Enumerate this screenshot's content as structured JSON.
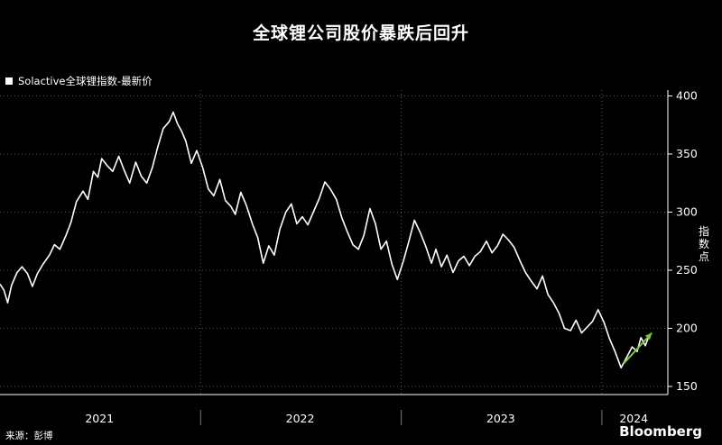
{
  "title": "全球锂公司股价暴跌后回升",
  "legend": {
    "label": "Solactive全球锂指数-最新价"
  },
  "source": "来源：彭博",
  "brand": "Bloomberg",
  "colors": {
    "background": "#000000",
    "line": "#ffffff",
    "grid": "#555555",
    "arrow": "#7ec93a"
  },
  "chart_data": {
    "type": "line",
    "title": "全球锂公司股价暴跌后回升",
    "ylabel": "指数点",
    "ylim": [
      143,
      405
    ],
    "y_ticks": [
      150,
      200,
      250,
      300,
      350,
      400
    ],
    "x_range": [
      "2021-01-01",
      "2024-04-30"
    ],
    "x_labels": [
      "2021",
      "2022",
      "2023",
      "2024"
    ],
    "x_label_dates": [
      "2021-07-01",
      "2022-07-01",
      "2023-07-01",
      "2024-02-28"
    ],
    "series": [
      {
        "name": "Solactive全球锂指数-最新价",
        "points": [
          [
            "2021-01-01",
            238
          ],
          [
            "2021-01-08",
            233
          ],
          [
            "2021-01-15",
            222
          ],
          [
            "2021-01-22",
            237
          ],
          [
            "2021-02-01",
            248
          ],
          [
            "2021-02-10",
            253
          ],
          [
            "2021-02-20",
            247
          ],
          [
            "2021-03-01",
            236
          ],
          [
            "2021-03-10",
            247
          ],
          [
            "2021-03-20",
            255
          ],
          [
            "2021-04-01",
            263
          ],
          [
            "2021-04-10",
            272
          ],
          [
            "2021-04-20",
            268
          ],
          [
            "2021-05-01",
            280
          ],
          [
            "2021-05-10",
            291
          ],
          [
            "2021-05-20",
            309
          ],
          [
            "2021-06-01",
            318
          ],
          [
            "2021-06-10",
            311
          ],
          [
            "2021-06-20",
            335
          ],
          [
            "2021-06-28",
            330
          ],
          [
            "2021-07-05",
            346
          ],
          [
            "2021-07-15",
            340
          ],
          [
            "2021-07-25",
            335
          ],
          [
            "2021-08-05",
            348
          ],
          [
            "2021-08-15",
            336
          ],
          [
            "2021-08-25",
            325
          ],
          [
            "2021-09-05",
            343
          ],
          [
            "2021-09-15",
            331
          ],
          [
            "2021-09-25",
            325
          ],
          [
            "2021-10-05",
            338
          ],
          [
            "2021-10-15",
            356
          ],
          [
            "2021-10-25",
            372
          ],
          [
            "2021-11-05",
            378
          ],
          [
            "2021-11-12",
            386
          ],
          [
            "2021-11-20",
            376
          ],
          [
            "2021-11-28",
            369
          ],
          [
            "2021-12-05",
            361
          ],
          [
            "2021-12-15",
            342
          ],
          [
            "2021-12-25",
            353
          ],
          [
            "2022-01-05",
            338
          ],
          [
            "2022-01-15",
            320
          ],
          [
            "2022-01-25",
            314
          ],
          [
            "2022-02-05",
            328
          ],
          [
            "2022-02-15",
            310
          ],
          [
            "2022-02-25",
            305
          ],
          [
            "2022-03-05",
            298
          ],
          [
            "2022-03-15",
            317
          ],
          [
            "2022-03-25",
            306
          ],
          [
            "2022-04-05",
            290
          ],
          [
            "2022-04-15",
            278
          ],
          [
            "2022-04-25",
            256
          ],
          [
            "2022-05-05",
            271
          ],
          [
            "2022-05-15",
            263
          ],
          [
            "2022-05-25",
            285
          ],
          [
            "2022-06-05",
            300
          ],
          [
            "2022-06-15",
            307
          ],
          [
            "2022-06-25",
            290
          ],
          [
            "2022-07-05",
            296
          ],
          [
            "2022-07-15",
            289
          ],
          [
            "2022-07-25",
            300
          ],
          [
            "2022-08-05",
            312
          ],
          [
            "2022-08-15",
            326
          ],
          [
            "2022-08-25",
            320
          ],
          [
            "2022-09-05",
            311
          ],
          [
            "2022-09-15",
            295
          ],
          [
            "2022-09-25",
            283
          ],
          [
            "2022-10-05",
            272
          ],
          [
            "2022-10-15",
            268
          ],
          [
            "2022-10-25",
            280
          ],
          [
            "2022-11-05",
            303
          ],
          [
            "2022-11-15",
            290
          ],
          [
            "2022-11-25",
            268
          ],
          [
            "2022-12-05",
            275
          ],
          [
            "2022-12-15",
            255
          ],
          [
            "2022-12-25",
            242
          ],
          [
            "2023-01-05",
            258
          ],
          [
            "2023-01-15",
            275
          ],
          [
            "2023-01-25",
            293
          ],
          [
            "2023-02-05",
            282
          ],
          [
            "2023-02-15",
            270
          ],
          [
            "2023-02-25",
            256
          ],
          [
            "2023-03-05",
            268
          ],
          [
            "2023-03-15",
            253
          ],
          [
            "2023-03-25",
            263
          ],
          [
            "2023-04-05",
            248
          ],
          [
            "2023-04-15",
            258
          ],
          [
            "2023-04-25",
            262
          ],
          [
            "2023-05-05",
            254
          ],
          [
            "2023-05-15",
            262
          ],
          [
            "2023-05-25",
            266
          ],
          [
            "2023-06-05",
            275
          ],
          [
            "2023-06-15",
            265
          ],
          [
            "2023-06-25",
            271
          ],
          [
            "2023-07-05",
            281
          ],
          [
            "2023-07-15",
            276
          ],
          [
            "2023-07-25",
            270
          ],
          [
            "2023-08-05",
            258
          ],
          [
            "2023-08-15",
            248
          ],
          [
            "2023-08-25",
            241
          ],
          [
            "2023-09-05",
            234
          ],
          [
            "2023-09-15",
            245
          ],
          [
            "2023-09-25",
            229
          ],
          [
            "2023-10-05",
            222
          ],
          [
            "2023-10-15",
            213
          ],
          [
            "2023-10-25",
            200
          ],
          [
            "2023-11-05",
            198
          ],
          [
            "2023-11-15",
            207
          ],
          [
            "2023-11-25",
            196
          ],
          [
            "2023-12-05",
            201
          ],
          [
            "2023-12-15",
            206
          ],
          [
            "2023-12-25",
            216
          ],
          [
            "2024-01-05",
            205
          ],
          [
            "2024-01-15",
            191
          ],
          [
            "2024-01-25",
            180
          ],
          [
            "2024-02-05",
            166
          ],
          [
            "2024-02-15",
            175
          ],
          [
            "2024-02-25",
            184
          ],
          [
            "2024-03-05",
            180
          ],
          [
            "2024-03-12",
            192
          ],
          [
            "2024-03-20",
            185
          ],
          [
            "2024-03-28",
            195
          ]
        ]
      }
    ],
    "annotations": [
      {
        "type": "arrow",
        "from": [
          "2024-02-10",
          170
        ],
        "to": [
          "2024-04-01",
          196
        ]
      }
    ]
  }
}
